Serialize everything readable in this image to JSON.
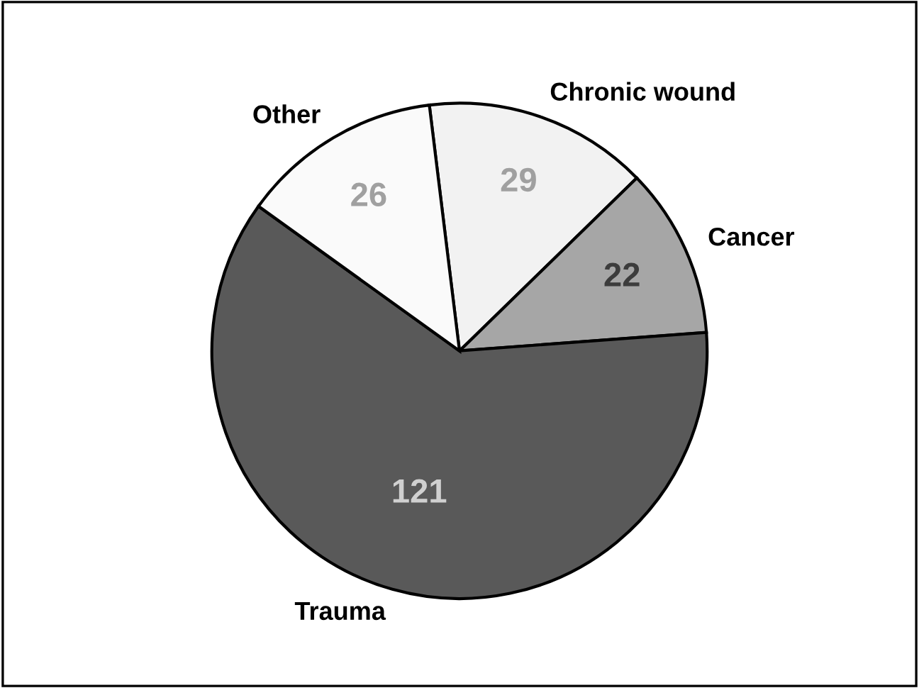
{
  "chart_data": {
    "type": "pie",
    "categories": [
      "Chronic wound",
      "Cancer",
      "Trauma",
      "Other"
    ],
    "values": [
      29,
      22,
      121,
      26
    ],
    "colors": [
      "#f2f2f2",
      "#a6a6a6",
      "#595959",
      "#fafafa"
    ],
    "data_labels": true
  }
}
